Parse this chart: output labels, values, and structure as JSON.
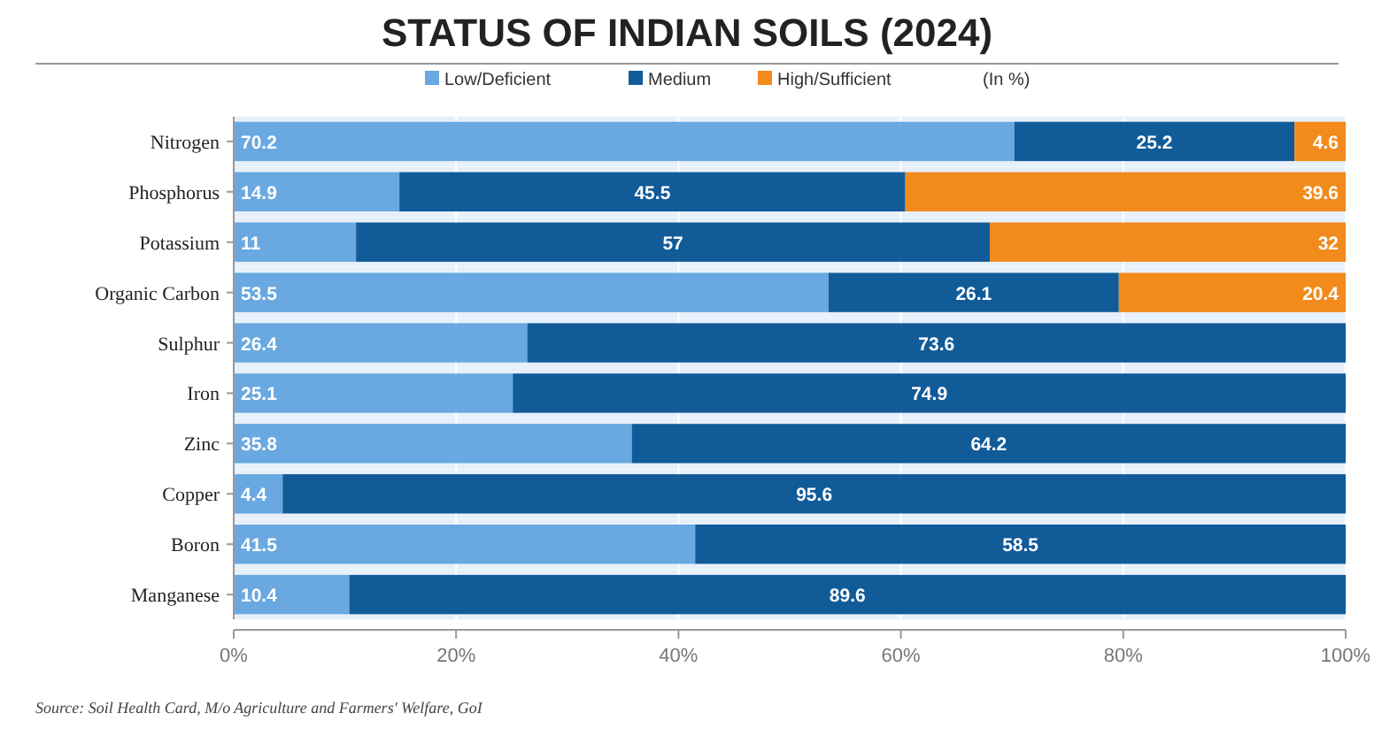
{
  "chart_data": {
    "type": "bar",
    "orientation": "horizontal",
    "stacked": true,
    "title": "STATUS OF INDIAN SOILS (2024)",
    "legend_title": "(In %)",
    "legend": "top",
    "grid": "x",
    "data_labels": true,
    "categories": [
      "Nitrogen",
      "Phosphorus",
      "Potassium",
      "Organic Carbon",
      "Sulphur",
      "Iron",
      "Zinc",
      "Copper",
      "Boron",
      "Manganese"
    ],
    "series": [
      {
        "name": "Low/Deficient",
        "color": "#69a8e0",
        "values": [
          70.2,
          14.9,
          11,
          53.5,
          26.4,
          25.1,
          35.8,
          4.4,
          41.5,
          10.4
        ]
      },
      {
        "name": "Medium",
        "color": "#115b99",
        "values": [
          25.2,
          45.5,
          57,
          26.1,
          73.6,
          74.9,
          64.2,
          95.6,
          58.5,
          89.6
        ]
      },
      {
        "name": "High/Sufficient",
        "color": "#f28a1c",
        "values": [
          4.6,
          39.6,
          32,
          20.4,
          null,
          null,
          null,
          null,
          null,
          null
        ]
      }
    ],
    "xlim": [
      0,
      100
    ],
    "xticks": [
      {
        "value": 0,
        "label": "0%"
      },
      {
        "value": 20,
        "label": "20%"
      },
      {
        "value": 40,
        "label": "40%"
      },
      {
        "value": 60,
        "label": "60%"
      },
      {
        "value": 80,
        "label": "80%"
      },
      {
        "value": 100,
        "label": "100%"
      }
    ],
    "annotations": [
      "Source: Soil Health Card, M/o Agriculture and Farmers' Welfare, GoI"
    ]
  }
}
